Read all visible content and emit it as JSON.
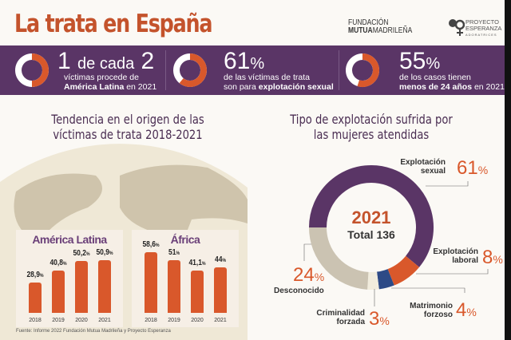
{
  "header": {
    "title": "La trata en España",
    "logo1_line1": "FUNDACIÓN",
    "logo1_bold": "MUTUA",
    "logo1_rest": "MADRILEÑA",
    "logo2_line1": "PROYECTO",
    "logo2_line2": "ESPERANZA",
    "logo2_line3": "ADORATRICES"
  },
  "stats": [
    {
      "fraction": 0.5,
      "big_a": "1",
      "big_mid": "de cada",
      "big_b": "2",
      "line1": "víctimas procede de",
      "line2_bold": "América Latina",
      "line2_rest": " en 2021"
    },
    {
      "fraction": 0.61,
      "big": "61",
      "unit": "%",
      "line1": "de las víctimas de trata",
      "line2_pre": "son para ",
      "line2_bold": "explotación sexual"
    },
    {
      "fraction": 0.55,
      "big": "55",
      "unit": "%",
      "line1": "de los casos tienen",
      "line2_bold": "menos de 24 años",
      "line2_rest": " en 2021"
    }
  ],
  "colors": {
    "accent": "#d9582b",
    "purple": "#5a3566",
    "title": "#c4532c"
  },
  "chart_data": [
    {
      "type": "bar",
      "title": "Tendencia en el origen de las víctimas de trata 2018-2021",
      "panel_title": "América Latina",
      "categories": [
        "2018",
        "2019",
        "2020",
        "2021"
      ],
      "values": [
        28.9,
        40.8,
        50.2,
        50.9
      ],
      "labels": [
        "28,9",
        "40,8",
        "50,2",
        "50,9"
      ],
      "unit": "%"
    },
    {
      "type": "bar",
      "panel_title": "África",
      "categories": [
        "2018",
        "2019",
        "2020",
        "2021"
      ],
      "values": [
        58.6,
        51,
        41.1,
        44
      ],
      "labels": [
        "58,6",
        "51",
        "41,1",
        "44"
      ],
      "unit": "%"
    },
    {
      "type": "pie",
      "title": "Tipo de explotación sufrida por las mujeres atendidas",
      "center_year": "2021",
      "center_total": "Total 136",
      "slices": [
        {
          "name": "Explotación sexual",
          "l1": "Explotación",
          "l2": "sexual",
          "value": 61,
          "color": "#5a3566"
        },
        {
          "name": "Explotación laboral",
          "l1": "Explotación",
          "l2": "laboral",
          "value": 8,
          "color": "#d9582b"
        },
        {
          "name": "Matrimonio forzoso",
          "l1": "Matrimonio",
          "l2": "forzoso",
          "value": 4,
          "color": "#2d4a86"
        },
        {
          "name": "Criminalidad forzada",
          "l1": "Criminalidad",
          "l2": "forzada",
          "value": 3,
          "color": "#f1ecdd"
        },
        {
          "name": "Desconocido",
          "l1": "",
          "l2": "Desconocido",
          "value": 24,
          "color": "#cbc3b2"
        }
      ]
    }
  ],
  "source": "Fuente: Informe 2022 Fundación Mutua Madrileña y Proyecto Esperanza"
}
